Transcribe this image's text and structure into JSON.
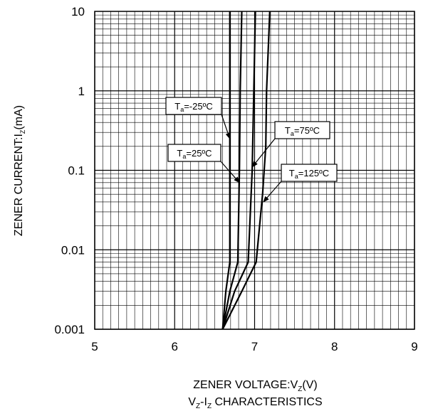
{
  "chart_data": {
    "type": "line",
    "subtitle_parts": {
      "v": "V",
      "vsub": "Z",
      "dash": "-I",
      "isub": "Z",
      "rest": " CHARACTERISTICS"
    },
    "xlabel_parts": {
      "main": "ZENER VOLTAGE:V",
      "sub": "Z",
      "end": "(V)"
    },
    "ylabel_parts": {
      "main": "ZENER CURRENT:I",
      "sub": "Z",
      "end": "(mA)"
    },
    "xlim": [
      5,
      9
    ],
    "ylim": [
      0.001,
      10
    ],
    "yscale": "log",
    "grid": true,
    "x_ticks": [
      "5",
      "6",
      "7",
      "8",
      "9"
    ],
    "y_ticks": [
      {
        "value": 10,
        "label": "10"
      },
      {
        "value": 1,
        "label": "1"
      },
      {
        "value": 0.1,
        "label": "0.1"
      },
      {
        "value": 0.01,
        "label": "0.01"
      },
      {
        "value": 0.001,
        "label": "0.001"
      }
    ],
    "series": [
      {
        "name": "Ta=-25ºC",
        "points": [
          [
            6.6,
            0.001
          ],
          [
            6.64,
            0.003
          ],
          [
            6.69,
            0.007
          ],
          [
            6.69,
            0.1
          ],
          [
            6.69,
            10
          ]
        ]
      },
      {
        "name": "Ta=25ºC",
        "points": [
          [
            6.6,
            0.001
          ],
          [
            6.69,
            0.003
          ],
          [
            6.79,
            0.007
          ],
          [
            6.81,
            0.1
          ],
          [
            6.82,
            1
          ],
          [
            6.84,
            10
          ]
        ]
      },
      {
        "name": "Ta=75ºC",
        "points": [
          [
            6.6,
            0.001
          ],
          [
            6.75,
            0.003
          ],
          [
            6.92,
            0.007
          ],
          [
            6.97,
            0.1
          ],
          [
            6.99,
            1
          ],
          [
            7.01,
            10
          ]
        ]
      },
      {
        "name": "Ta=125ºC",
        "points": [
          [
            6.6,
            0.001
          ],
          [
            6.84,
            0.003
          ],
          [
            7.02,
            0.007
          ],
          [
            7.1,
            0.05
          ],
          [
            7.14,
            0.2
          ],
          [
            7.15,
            1
          ],
          [
            7.19,
            10
          ]
        ]
      }
    ],
    "annotations": [
      {
        "series": "Ta=-25ºC",
        "label_parts": {
          "t": "T",
          "sub": "a",
          "rest": "=-25ºC"
        },
        "target": [
          6.69,
          0.25
        ]
      },
      {
        "series": "Ta=25ºC",
        "label_parts": {
          "t": "T",
          "sub": "a",
          "rest": "=25ºC"
        },
        "target": [
          6.81,
          0.07
        ]
      },
      {
        "series": "Ta=75ºC",
        "label_parts": {
          "t": "T",
          "sub": "a",
          "rest": "=75ºC"
        },
        "target": [
          6.97,
          0.11
        ]
      },
      {
        "series": "Ta=125ºC",
        "label_parts": {
          "t": "T",
          "sub": "a",
          "rest": "=125ºC"
        },
        "target": [
          7.11,
          0.04
        ]
      }
    ]
  }
}
